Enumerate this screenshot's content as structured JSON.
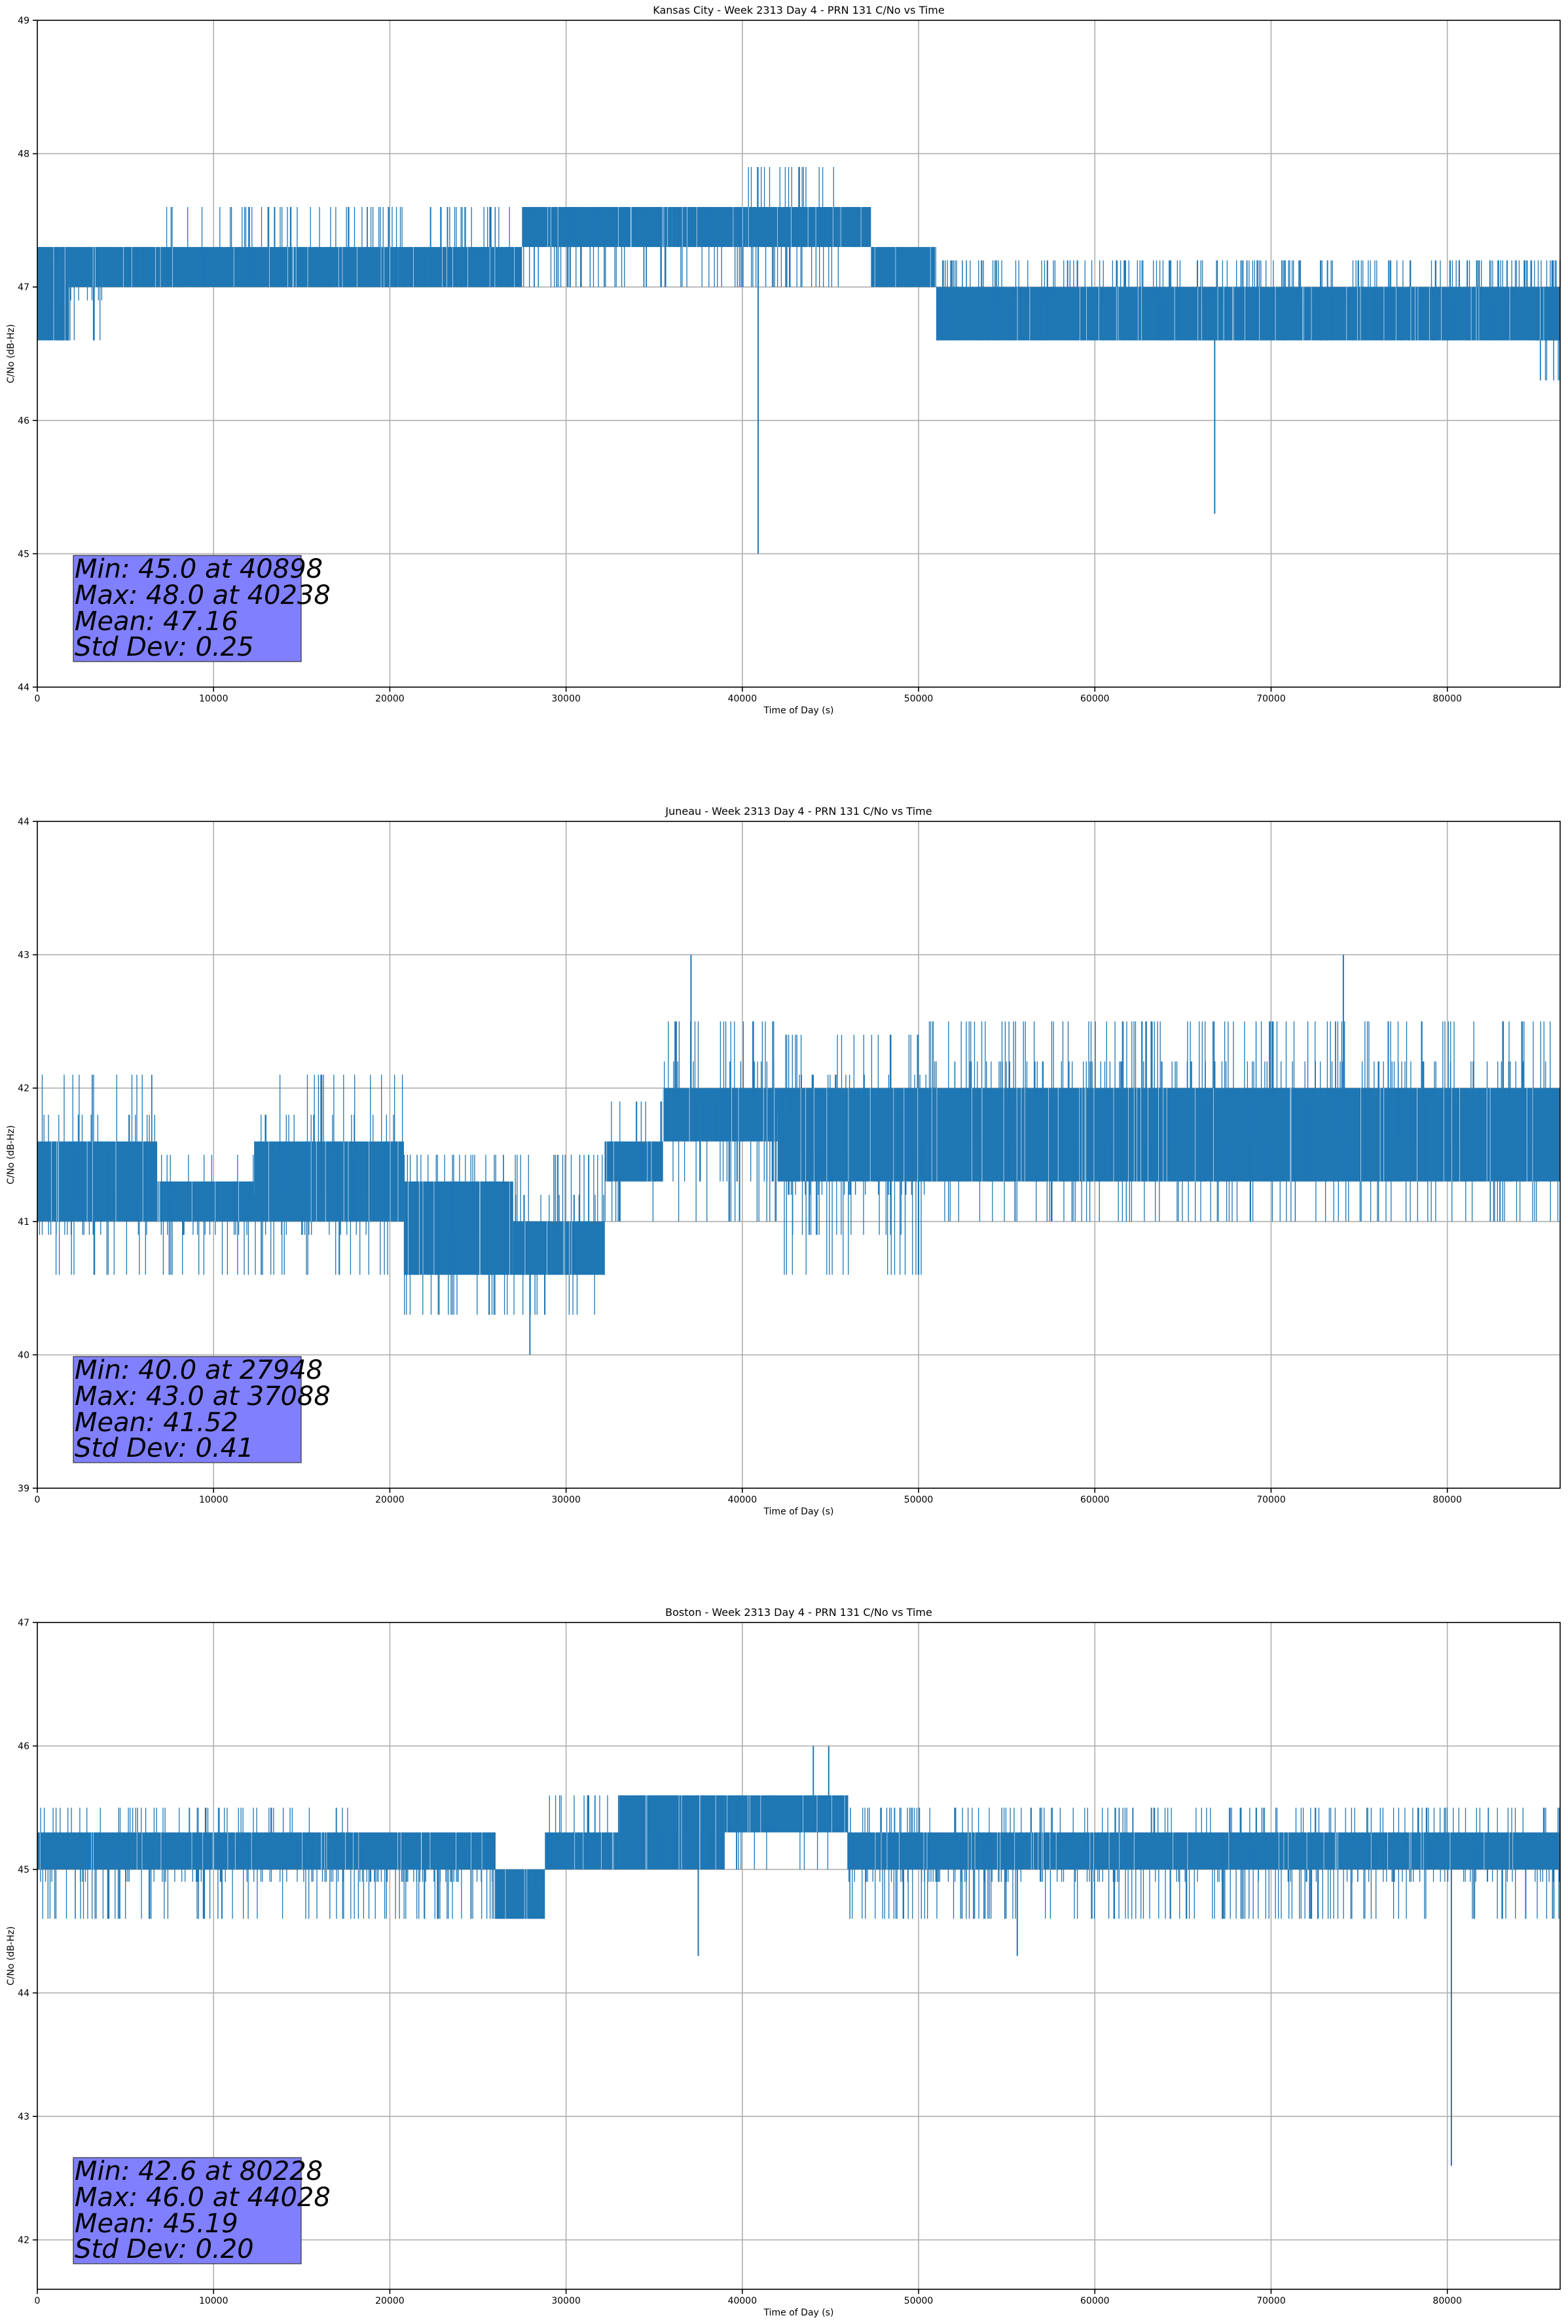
{
  "figure": {
    "line_color": "#1f77b4",
    "stats_box_color": "#8080ff",
    "grid_color": "#b0b0b0"
  },
  "chart_data": [
    {
      "type": "line",
      "title": "Kansas City - Week 2313 Day 4 - PRN 131 C/No vs Time",
      "xlabel": "Time of Day (s)",
      "ylabel": "C/No (dB-Hz)",
      "xlim": [
        0,
        86400
      ],
      "ylim": [
        44,
        49
      ],
      "xticks": [
        0,
        10000,
        20000,
        30000,
        40000,
        50000,
        60000,
        70000,
        80000
      ],
      "yticks": [
        44,
        45,
        46,
        47,
        48,
        49
      ],
      "grid": true,
      "series": [
        {
          "name": "C/No",
          "color": "#1f77b4"
        }
      ],
      "quantization_step": 0.3,
      "segments": [
        {
          "x": [
            0,
            1800
          ],
          "low": 46.6,
          "high": 47.3,
          "spike_low": 46.6,
          "spike_high": 47.3,
          "density": 0.6
        },
        {
          "x": [
            1800,
            3700
          ],
          "low": 47.0,
          "high": 47.3,
          "spike_low": 46.6,
          "spike_high": 47.3,
          "density": 0.35
        },
        {
          "x": [
            3700,
            7000
          ],
          "low": 47.0,
          "high": 47.3,
          "spike_low": 47.0,
          "spike_high": 47.3,
          "density": 0.2
        },
        {
          "x": [
            7000,
            20500
          ],
          "low": 47.0,
          "high": 47.3,
          "spike_low": 47.0,
          "spike_high": 47.6,
          "density": 0.3
        },
        {
          "x": [
            20500,
            27500
          ],
          "low": 47.0,
          "high": 47.3,
          "spike_low": 47.0,
          "spike_high": 47.6,
          "density": 0.35
        },
        {
          "x": [
            27500,
            36000
          ],
          "low": 47.3,
          "high": 47.6,
          "spike_low": 47.0,
          "spike_high": 47.6,
          "density": 0.4
        },
        {
          "x": [
            36000,
            40200
          ],
          "low": 47.3,
          "high": 47.6,
          "spike_low": 47.0,
          "spike_high": 47.6,
          "density": 0.2
        },
        {
          "x": [
            40200,
            45500
          ],
          "low": 47.3,
          "high": 47.6,
          "spike_low": 47.0,
          "spike_high": 48.0,
          "density": 0.45
        },
        {
          "x": [
            45500,
            47300
          ],
          "low": 47.3,
          "high": 47.6,
          "spike_low": 47.3,
          "spike_high": 47.6,
          "density": 0.1
        },
        {
          "x": [
            47300,
            51000
          ],
          "low": 47.0,
          "high": 47.3,
          "spike_low": 47.0,
          "spike_high": 47.3,
          "density": 0.2
        },
        {
          "x": [
            51000,
            86400
          ],
          "low": 46.6,
          "high": 47.0,
          "spike_low": 46.6,
          "spike_high": 47.3,
          "density": 0.45
        },
        {
          "x": [
            85000,
            86400
          ],
          "low": 46.6,
          "high": 47.0,
          "spike_low": 46.3,
          "spike_high": 47.0,
          "density": 0.5
        }
      ],
      "spikes": [
        {
          "x": 40898,
          "y": 45.0
        },
        {
          "x": 66800,
          "y": 45.3
        }
      ],
      "stats": {
        "min": "Min: 45.0 at 40898",
        "max": "Max: 48.0 at 40238",
        "mean": "Mean: 47.16",
        "std": "Std Dev: 0.25"
      }
    },
    {
      "type": "line",
      "title": "Juneau - Week 2313 Day 4 - PRN 131 C/No vs Time",
      "xlabel": "Time of Day (s)",
      "ylabel": "C/No (dB-Hz)",
      "xlim": [
        0,
        86400
      ],
      "ylim": [
        39,
        44
      ],
      "xticks": [
        0,
        10000,
        20000,
        30000,
        40000,
        50000,
        60000,
        70000,
        80000
      ],
      "yticks": [
        39,
        40,
        41,
        42,
        43,
        44
      ],
      "grid": true,
      "series": [
        {
          "name": "C/No",
          "color": "#1f77b4"
        }
      ],
      "quantization_step": 0.3,
      "segments": [
        {
          "x": [
            0,
            6800
          ],
          "low": 41.0,
          "high": 41.6,
          "spike_low": 40.6,
          "spike_high": 42.0,
          "density": 0.35
        },
        {
          "x": [
            6800,
            12300
          ],
          "low": 41.0,
          "high": 41.3,
          "spike_low": 40.6,
          "spike_high": 41.6,
          "density": 0.3
        },
        {
          "x": [
            12300,
            18000
          ],
          "low": 41.0,
          "high": 41.6,
          "spike_low": 40.6,
          "spike_high": 42.0,
          "density": 0.35
        },
        {
          "x": [
            18000,
            20800
          ],
          "low": 41.0,
          "high": 41.6,
          "spike_low": 40.6,
          "spike_high": 42.0,
          "density": 0.3
        },
        {
          "x": [
            20800,
            27000
          ],
          "low": 40.6,
          "high": 41.3,
          "spike_low": 40.3,
          "spike_high": 41.6,
          "density": 0.4
        },
        {
          "x": [
            27000,
            32200
          ],
          "low": 40.6,
          "high": 41.0,
          "spike_low": 40.3,
          "spike_high": 41.6,
          "density": 0.45
        },
        {
          "x": [
            32200,
            35500
          ],
          "low": 41.3,
          "high": 41.6,
          "spike_low": 41.0,
          "spike_high": 42.0,
          "density": 0.3
        },
        {
          "x": [
            35500,
            42000
          ],
          "low": 41.6,
          "high": 42.0,
          "spike_low": 41.0,
          "spike_high": 42.6,
          "density": 0.45
        },
        {
          "x": [
            42000,
            50500
          ],
          "low": 41.3,
          "high": 42.0,
          "spike_low": 40.6,
          "spike_high": 42.3,
          "density": 0.45
        },
        {
          "x": [
            50500,
            86400
          ],
          "low": 41.3,
          "high": 42.0,
          "spike_low": 41.0,
          "spike_high": 42.6,
          "density": 0.45
        }
      ],
      "spikes": [
        {
          "x": 27948,
          "y": 40.0
        },
        {
          "x": 37088,
          "y": 43.0
        },
        {
          "x": 74100,
          "y": 43.0
        }
      ],
      "stats": {
        "min": "Min: 40.0 at 27948",
        "max": "Max: 43.0 at 37088",
        "mean": "Mean: 41.52",
        "std": "Std Dev: 0.41"
      }
    },
    {
      "type": "line",
      "title": "Boston - Week 2313 Day 4 - PRN 131 C/No vs Time",
      "xlabel": "Time of Day (s)",
      "ylabel": "C/No (dB-Hz)",
      "xlim": [
        0,
        86400
      ],
      "ylim": [
        41.6,
        47
      ],
      "xticks": [
        0,
        10000,
        20000,
        30000,
        40000,
        50000,
        60000,
        70000,
        80000
      ],
      "yticks": [
        42,
        43,
        44,
        45,
        46,
        47
      ],
      "grid": true,
      "series": [
        {
          "name": "C/No",
          "color": "#1f77b4"
        }
      ],
      "quantization_step": 0.3,
      "segments": [
        {
          "x": [
            0,
            18000
          ],
          "low": 45.0,
          "high": 45.3,
          "spike_low": 44.6,
          "spike_high": 45.6,
          "density": 0.35
        },
        {
          "x": [
            18000,
            26000
          ],
          "low": 45.0,
          "high": 45.3,
          "spike_low": 44.6,
          "spike_high": 45.3,
          "density": 0.35
        },
        {
          "x": [
            26000,
            28800
          ],
          "low": 44.6,
          "high": 45.0,
          "spike_low": 44.6,
          "spike_high": 45.0,
          "density": 0.1
        },
        {
          "x": [
            28800,
            33000
          ],
          "low": 45.0,
          "high": 45.3,
          "spike_low": 45.0,
          "spike_high": 45.6,
          "density": 0.4
        },
        {
          "x": [
            33000,
            39000
          ],
          "low": 45.0,
          "high": 45.6,
          "spike_low": 45.0,
          "spike_high": 45.6,
          "density": 0.45
        },
        {
          "x": [
            39000,
            46000
          ],
          "low": 45.3,
          "high": 45.6,
          "spike_low": 45.0,
          "spike_high": 45.6,
          "density": 0.2
        },
        {
          "x": [
            46000,
            86400
          ],
          "low": 45.0,
          "high": 45.3,
          "spike_low": 44.6,
          "spike_high": 45.6,
          "density": 0.4
        }
      ],
      "spikes": [
        {
          "x": 37500,
          "y": 44.3
        },
        {
          "x": 55600,
          "y": 44.3
        },
        {
          "x": 44028,
          "y": 46.0
        },
        {
          "x": 44900,
          "y": 46.0
        },
        {
          "x": 80228,
          "y": 42.6
        }
      ],
      "stats": {
        "min": "Min: 42.6 at 80228",
        "max": "Max: 46.0 at 44028",
        "mean": "Mean: 45.19",
        "std": "Std Dev: 0.20"
      }
    }
  ]
}
